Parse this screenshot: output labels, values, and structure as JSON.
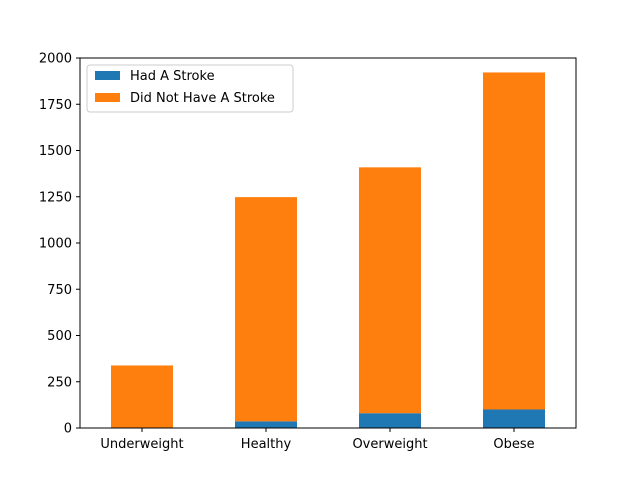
{
  "chart_data": {
    "type": "bar",
    "stacked": true,
    "categories": [
      "Underweight",
      "Healthy",
      "Overweight",
      "Obese"
    ],
    "series": [
      {
        "name": "Had A Stroke",
        "color": "#1f77b4",
        "values": [
          1,
          36,
          80,
          100
        ]
      },
      {
        "name": "Did Not Have A Stroke",
        "color": "#ff7f0e",
        "values": [
          337,
          1212,
          1329,
          1822
        ]
      }
    ],
    "title": "",
    "xlabel": "",
    "ylabel": "",
    "ylim": [
      0,
      2000
    ],
    "yticks": [
      0,
      250,
      500,
      750,
      1000,
      1250,
      1500,
      1750,
      2000
    ],
    "grid": false,
    "legend_position": "top-left"
  }
}
